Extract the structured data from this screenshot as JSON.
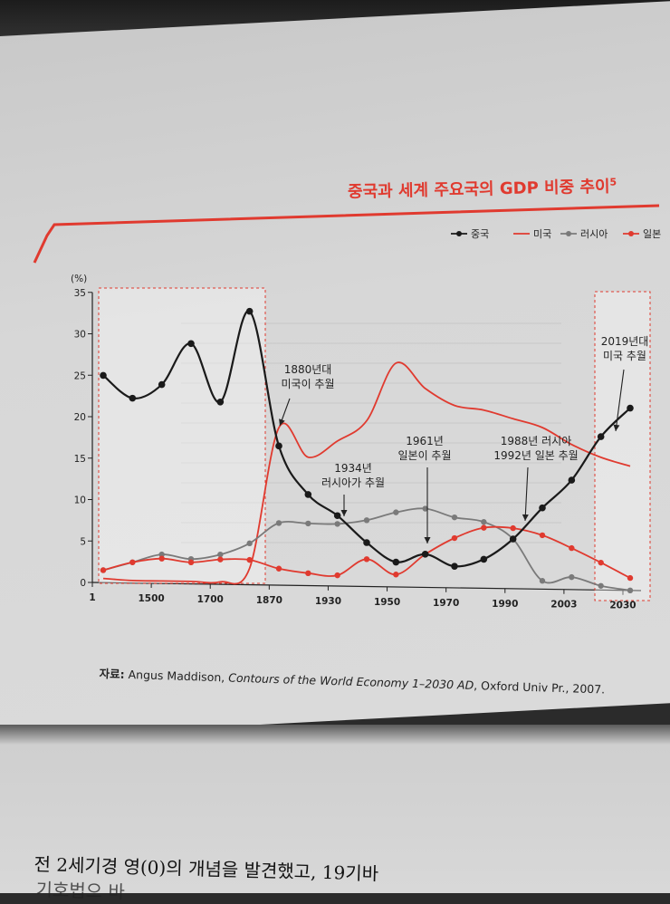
{
  "chart_data": {
    "type": "line",
    "title": "중국과 세계 주요국의 GDP 비중 추이",
    "title_footnote": "5",
    "ylabel": "(%)",
    "ylim": [
      0,
      35
    ],
    "yticks": [
      "0",
      "5",
      "10",
      "15",
      "20",
      "25",
      "30",
      "35"
    ],
    "xticks": [
      "1",
      "1500",
      "1700",
      "1870",
      "1930",
      "1950",
      "1970",
      "1990",
      "2003",
      "2030"
    ],
    "legend_position": "top-right",
    "series": [
      {
        "name": "중국",
        "color": "#1a1a1a",
        "marker": true,
        "values": [
          25,
          22.3,
          24,
          29,
          22,
          33,
          16.8,
          11,
          8.5,
          5.3,
          3,
          4,
          2.6,
          3.5,
          6,
          9.8,
          13.2,
          18.5,
          22
        ]
      },
      {
        "name": "미국",
        "color": "#e03a2f",
        "marker": false,
        "values": [
          0.5,
          0.3,
          0.3,
          0.3,
          0.3,
          2,
          19,
          15.5,
          17.5,
          20,
          27,
          24,
          22,
          21.5,
          20.5,
          19.5,
          17.5,
          16,
          15
        ]
      },
      {
        "name": "러시아",
        "color": "#7a7a7a",
        "marker": true,
        "values": [
          1.5,
          2.5,
          3.5,
          3,
          3.6,
          5,
          7.5,
          7.5,
          7.5,
          8,
          9,
          9.5,
          8.5,
          8,
          6,
          1,
          1.5,
          0.5,
          0
        ]
      },
      {
        "name": "일본",
        "color": "#e03a2f",
        "marker": true,
        "values": [
          1.5,
          2.5,
          3,
          2.6,
          3,
          3,
          2,
          1.5,
          1.3,
          3.3,
          1.5,
          4,
          6,
          7.3,
          7.3,
          6.5,
          5,
          3.3,
          1.5
        ]
      }
    ],
    "annotations": [
      {
        "lines": [
          "1880년대",
          "미국이 추월"
        ]
      },
      {
        "lines": [
          "1934년",
          "러시아가 추월"
        ]
      },
      {
        "lines": [
          "1961년",
          "일본이 추월"
        ]
      },
      {
        "lines": [
          "1988년 러시아",
          "1992년 일본 추월"
        ]
      },
      {
        "lines": [
          "2019년대",
          "미국 추월"
        ]
      }
    ]
  },
  "source": {
    "label": "자료:",
    "author": "Angus Maddison,",
    "book": "Contours of the World Economy 1–2030 AD",
    "rest": ", Oxford Univ Pr., 2007."
  },
  "body_text": {
    "line1": "전 2세기경 영(0)의 개념을 발견했고, 19기바",
    "line2": "기호법으 바"
  },
  "colors": {
    "accent_red": "#e03a2f",
    "china_black": "#1a1a1a",
    "russia_gray": "#7a7a7a"
  }
}
